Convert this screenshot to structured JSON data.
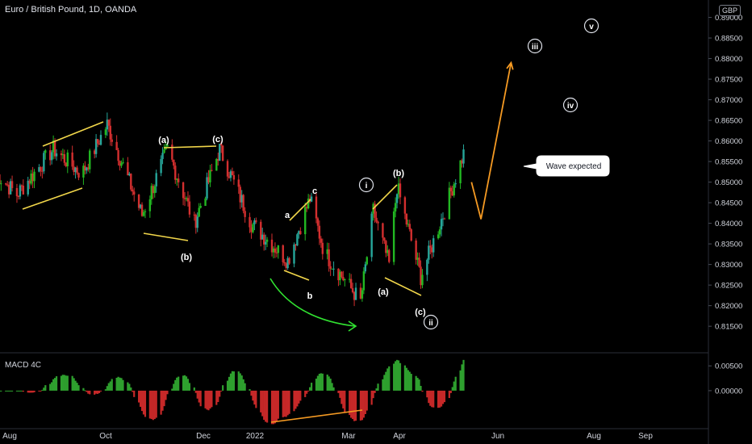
{
  "header": {
    "symbol_title": "Euro / British Pound, 1D, OANDA",
    "currency": "GBP"
  },
  "indicator": {
    "name": "MACD 4C"
  },
  "colors": {
    "up": "#26a69a",
    "up_bright": "#22b822",
    "down": "#d32f2f",
    "macd_up": "#2ea02e",
    "macd_down": "#c62828",
    "wedge": "#f1d64a",
    "projection": "#f59a23",
    "arrow_green": "#31e231",
    "text": "#d1d4dc"
  },
  "chart_data": [
    {
      "type": "candlestick",
      "title": "Euro / British Pound, 1D, OANDA",
      "y_axis_labels": [
        "0.89000",
        "0.88500",
        "0.88000",
        "0.87500",
        "0.87000",
        "0.86500",
        "0.86000",
        "0.85500",
        "0.85000",
        "0.84500",
        "0.84000",
        "0.83500",
        "0.83000",
        "0.82500",
        "0.82000",
        "0.81500"
      ],
      "ylim": [
        0.8115,
        0.8905
      ],
      "x_axis_labels": [
        "Aug",
        "Oct",
        "Dec",
        "2022",
        "Mar",
        "Apr",
        "Jun",
        "Aug",
        "Sep"
      ],
      "wave_labels": [
        "(a)",
        "(c)",
        "(b)",
        "a",
        "c",
        "b",
        "i",
        "(b)",
        "(a)",
        "(c)",
        "ii",
        "iii",
        "iv",
        "v"
      ],
      "callout": "Wave expected",
      "approx_price_path": [
        {
          "date": "2021-07-20",
          "price": 0.852
        },
        {
          "date": "2021-08-02",
          "price": 0.847
        },
        {
          "date": "2021-08-25",
          "price": 0.858
        },
        {
          "date": "2021-09-12",
          "price": 0.852
        },
        {
          "date": "2021-09-28",
          "price": 0.864
        },
        {
          "date": "2021-10-20",
          "price": 0.842
        },
        {
          "date": "2021-11-05",
          "price": 0.858
        },
        {
          "date": "2021-11-22",
          "price": 0.84
        },
        {
          "date": "2021-12-08",
          "price": 0.858
        },
        {
          "date": "2021-12-28",
          "price": 0.84
        },
        {
          "date": "2022-01-20",
          "price": 0.831
        },
        {
          "date": "2022-02-03",
          "price": 0.846
        },
        {
          "date": "2022-02-12",
          "price": 0.833
        },
        {
          "date": "2022-03-07",
          "price": 0.821
        },
        {
          "date": "2022-03-15",
          "price": 0.843
        },
        {
          "date": "2022-03-25",
          "price": 0.83
        },
        {
          "date": "2022-03-30",
          "price": 0.849
        },
        {
          "date": "2022-04-14",
          "price": 0.827
        },
        {
          "date": "2022-04-28",
          "price": 0.842
        },
        {
          "date": "2022-05-12",
          "price": 0.858
        }
      ],
      "projection": [
        {
          "date": "2022-05-16",
          "price": 0.85
        },
        {
          "date": "2022-05-22",
          "price": 0.841
        },
        {
          "date": "2022-06-10",
          "price": 0.879
        }
      ]
    },
    {
      "type": "bar",
      "title": "MACD 4C",
      "y_axis_labels": [
        "0.00500",
        "0.00000"
      ],
      "ylim": [
        -0.0075,
        0.0065
      ]
    }
  ]
}
